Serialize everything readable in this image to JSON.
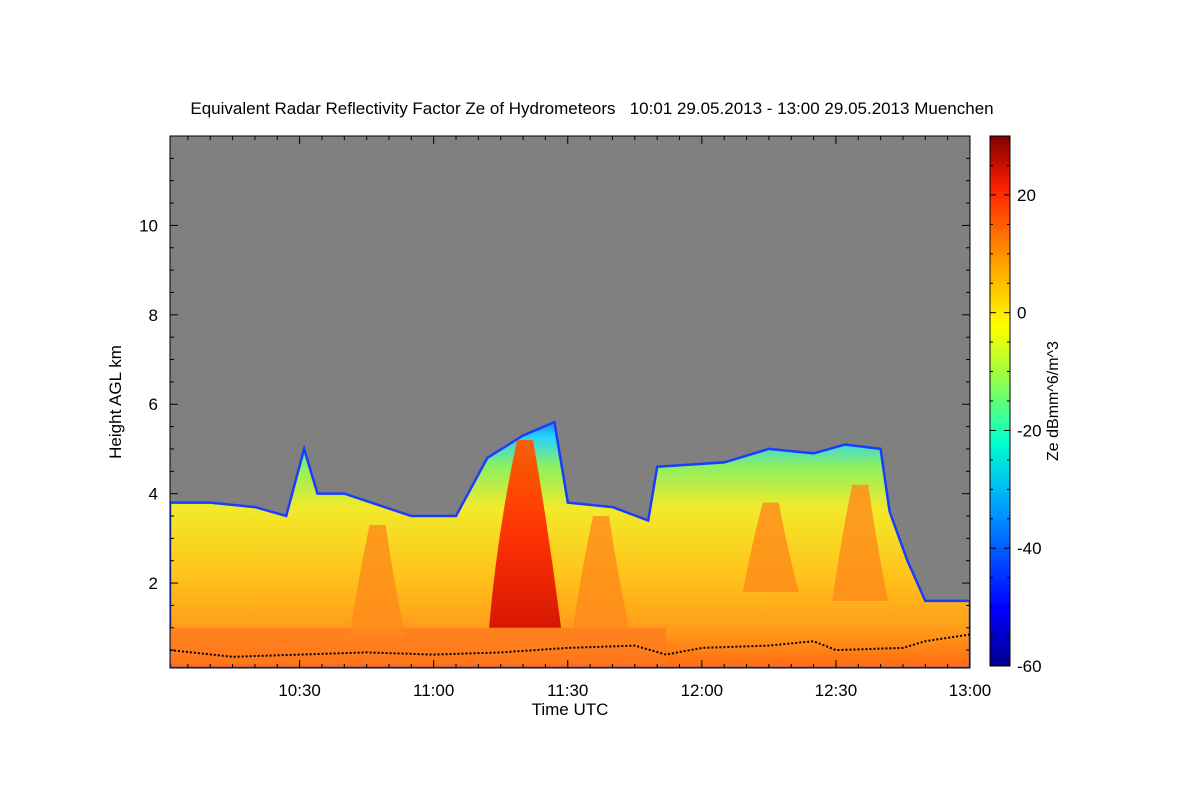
{
  "chart_data": {
    "type": "heatmap",
    "title": "Equivalent Radar Reflectivity Factor Ze of Hydrometeors   10:01 29.05.2013 - 13:00 29.05.2013 Muenchen",
    "xlabel": "Time UTC",
    "ylabel": "Height AGL km",
    "xlim": [
      "10:01",
      "13:00"
    ],
    "ylim": [
      0.1,
      12.0
    ],
    "x_ticks": [
      "10:30",
      "11:00",
      "11:30",
      "12:00",
      "12:30",
      "13:00"
    ],
    "y_ticks": [
      2,
      4,
      6,
      8,
      10
    ],
    "colorbar": {
      "label": "Ze dBmm^6/m^3",
      "range": [
        -60,
        30
      ],
      "ticks": [
        -60,
        -40,
        -20,
        0,
        20
      ]
    },
    "background_color": "#808080",
    "echo_top_km": [
      {
        "time": "10:01",
        "height": 3.8
      },
      {
        "time": "10:10",
        "height": 3.8
      },
      {
        "time": "10:20",
        "height": 3.7
      },
      {
        "time": "10:27",
        "height": 3.5
      },
      {
        "time": "10:31",
        "height": 5.0
      },
      {
        "time": "10:34",
        "height": 4.0
      },
      {
        "time": "10:40",
        "height": 4.0
      },
      {
        "time": "10:46",
        "height": 3.8
      },
      {
        "time": "10:55",
        "height": 3.5
      },
      {
        "time": "11:05",
        "height": 3.5
      },
      {
        "time": "11:12",
        "height": 4.8
      },
      {
        "time": "11:20",
        "height": 5.3
      },
      {
        "time": "11:27",
        "height": 5.6
      },
      {
        "time": "11:30",
        "height": 3.8
      },
      {
        "time": "11:40",
        "height": 3.7
      },
      {
        "time": "11:48",
        "height": 3.4
      },
      {
        "time": "11:50",
        "height": 4.6
      },
      {
        "time": "12:05",
        "height": 4.7
      },
      {
        "time": "12:15",
        "height": 5.0
      },
      {
        "time": "12:25",
        "height": 4.9
      },
      {
        "time": "12:32",
        "height": 5.1
      },
      {
        "time": "12:40",
        "height": 5.0
      },
      {
        "time": "12:42",
        "height": 3.6
      },
      {
        "time": "12:46",
        "height": 2.5
      },
      {
        "time": "12:50",
        "height": 1.6
      },
      {
        "time": "13:00",
        "height": 1.6
      }
    ],
    "cloud_base_km": [
      {
        "time": "10:01",
        "height": 0.5
      },
      {
        "time": "10:15",
        "height": 0.35
      },
      {
        "time": "10:30",
        "height": 0.4
      },
      {
        "time": "10:45",
        "height": 0.45
      },
      {
        "time": "11:00",
        "height": 0.4
      },
      {
        "time": "11:15",
        "height": 0.45
      },
      {
        "time": "11:30",
        "height": 0.55
      },
      {
        "time": "11:45",
        "height": 0.6
      },
      {
        "time": "11:52",
        "height": 0.4
      },
      {
        "time": "12:00",
        "height": 0.55
      },
      {
        "time": "12:15",
        "height": 0.6
      },
      {
        "time": "12:25",
        "height": 0.7
      },
      {
        "time": "12:30",
        "height": 0.5
      },
      {
        "time": "12:45",
        "height": 0.55
      },
      {
        "time": "12:50",
        "height": 0.7
      },
      {
        "time": "13:00",
        "height": 0.85
      }
    ],
    "cores": [
      {
        "time": "10:47",
        "height_from": 0.8,
        "height_to": 3.3,
        "ze": 12
      },
      {
        "time": "11:20",
        "height_from": 1.0,
        "height_to": 5.2,
        "ze": 22
      },
      {
        "time": "11:37",
        "height_from": 1.0,
        "height_to": 3.5,
        "ze": 12
      },
      {
        "time": "12:15",
        "height_from": 1.8,
        "height_to": 3.8,
        "ze": 5
      },
      {
        "time": "12:35",
        "height_from": 1.6,
        "height_to": 4.2,
        "ze": 12
      }
    ]
  }
}
